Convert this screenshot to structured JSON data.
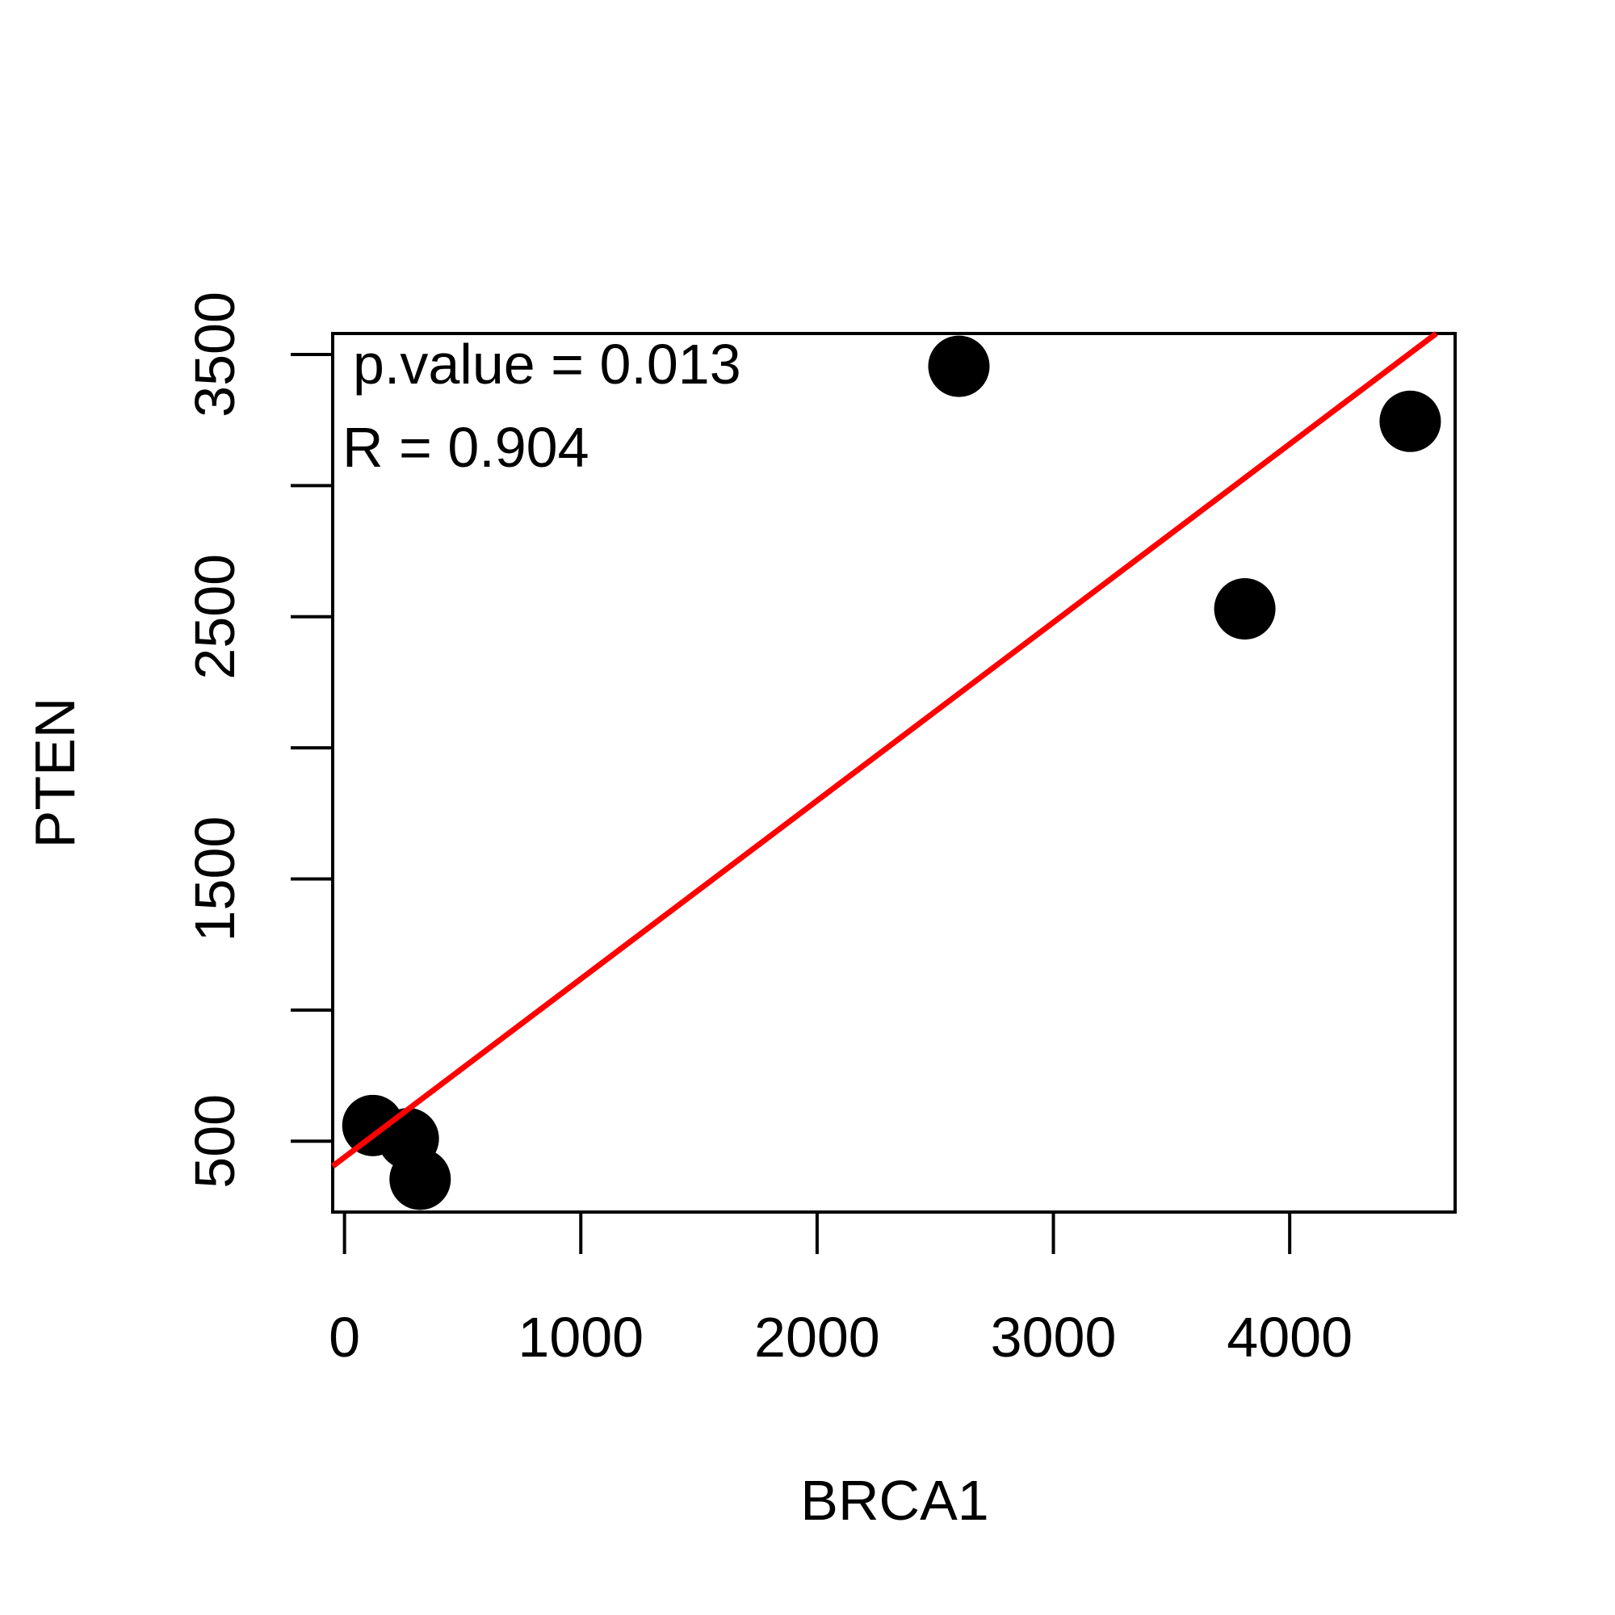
{
  "chart_data": {
    "type": "scatter",
    "title": "",
    "xlabel": "BRCA1",
    "ylabel": "PTEN",
    "xlim": [
      -50,
      4700
    ],
    "ylim": [
      230,
      3580
    ],
    "x_ticks": [
      0,
      1000,
      2000,
      3000,
      4000
    ],
    "x_tick_labels": [
      "0",
      "1000",
      "2000",
      "3000",
      "4000"
    ],
    "y_ticks": [
      500,
      1000,
      1500,
      2000,
      2500,
      3000,
      3500
    ],
    "y_tick_labels": [
      "500",
      "",
      "1500",
      "",
      "2500",
      "",
      "3500"
    ],
    "points": [
      {
        "x": 120,
        "y": 560
      },
      {
        "x": 270,
        "y": 510
      },
      {
        "x": 320,
        "y": 355
      },
      {
        "x": 2600,
        "y": 3455
      },
      {
        "x": 3810,
        "y": 2530
      },
      {
        "x": 4510,
        "y": 3245
      }
    ],
    "fit_line": {
      "x": [
        -50,
        4620
      ],
      "y": [
        405,
        3580
      ],
      "color": "#ff0000"
    },
    "annotations": {
      "pvalue": "p.value = 0.013",
      "r": "R = 0.904"
    },
    "point_color": "#000000",
    "grid": false,
    "legend": "none"
  }
}
